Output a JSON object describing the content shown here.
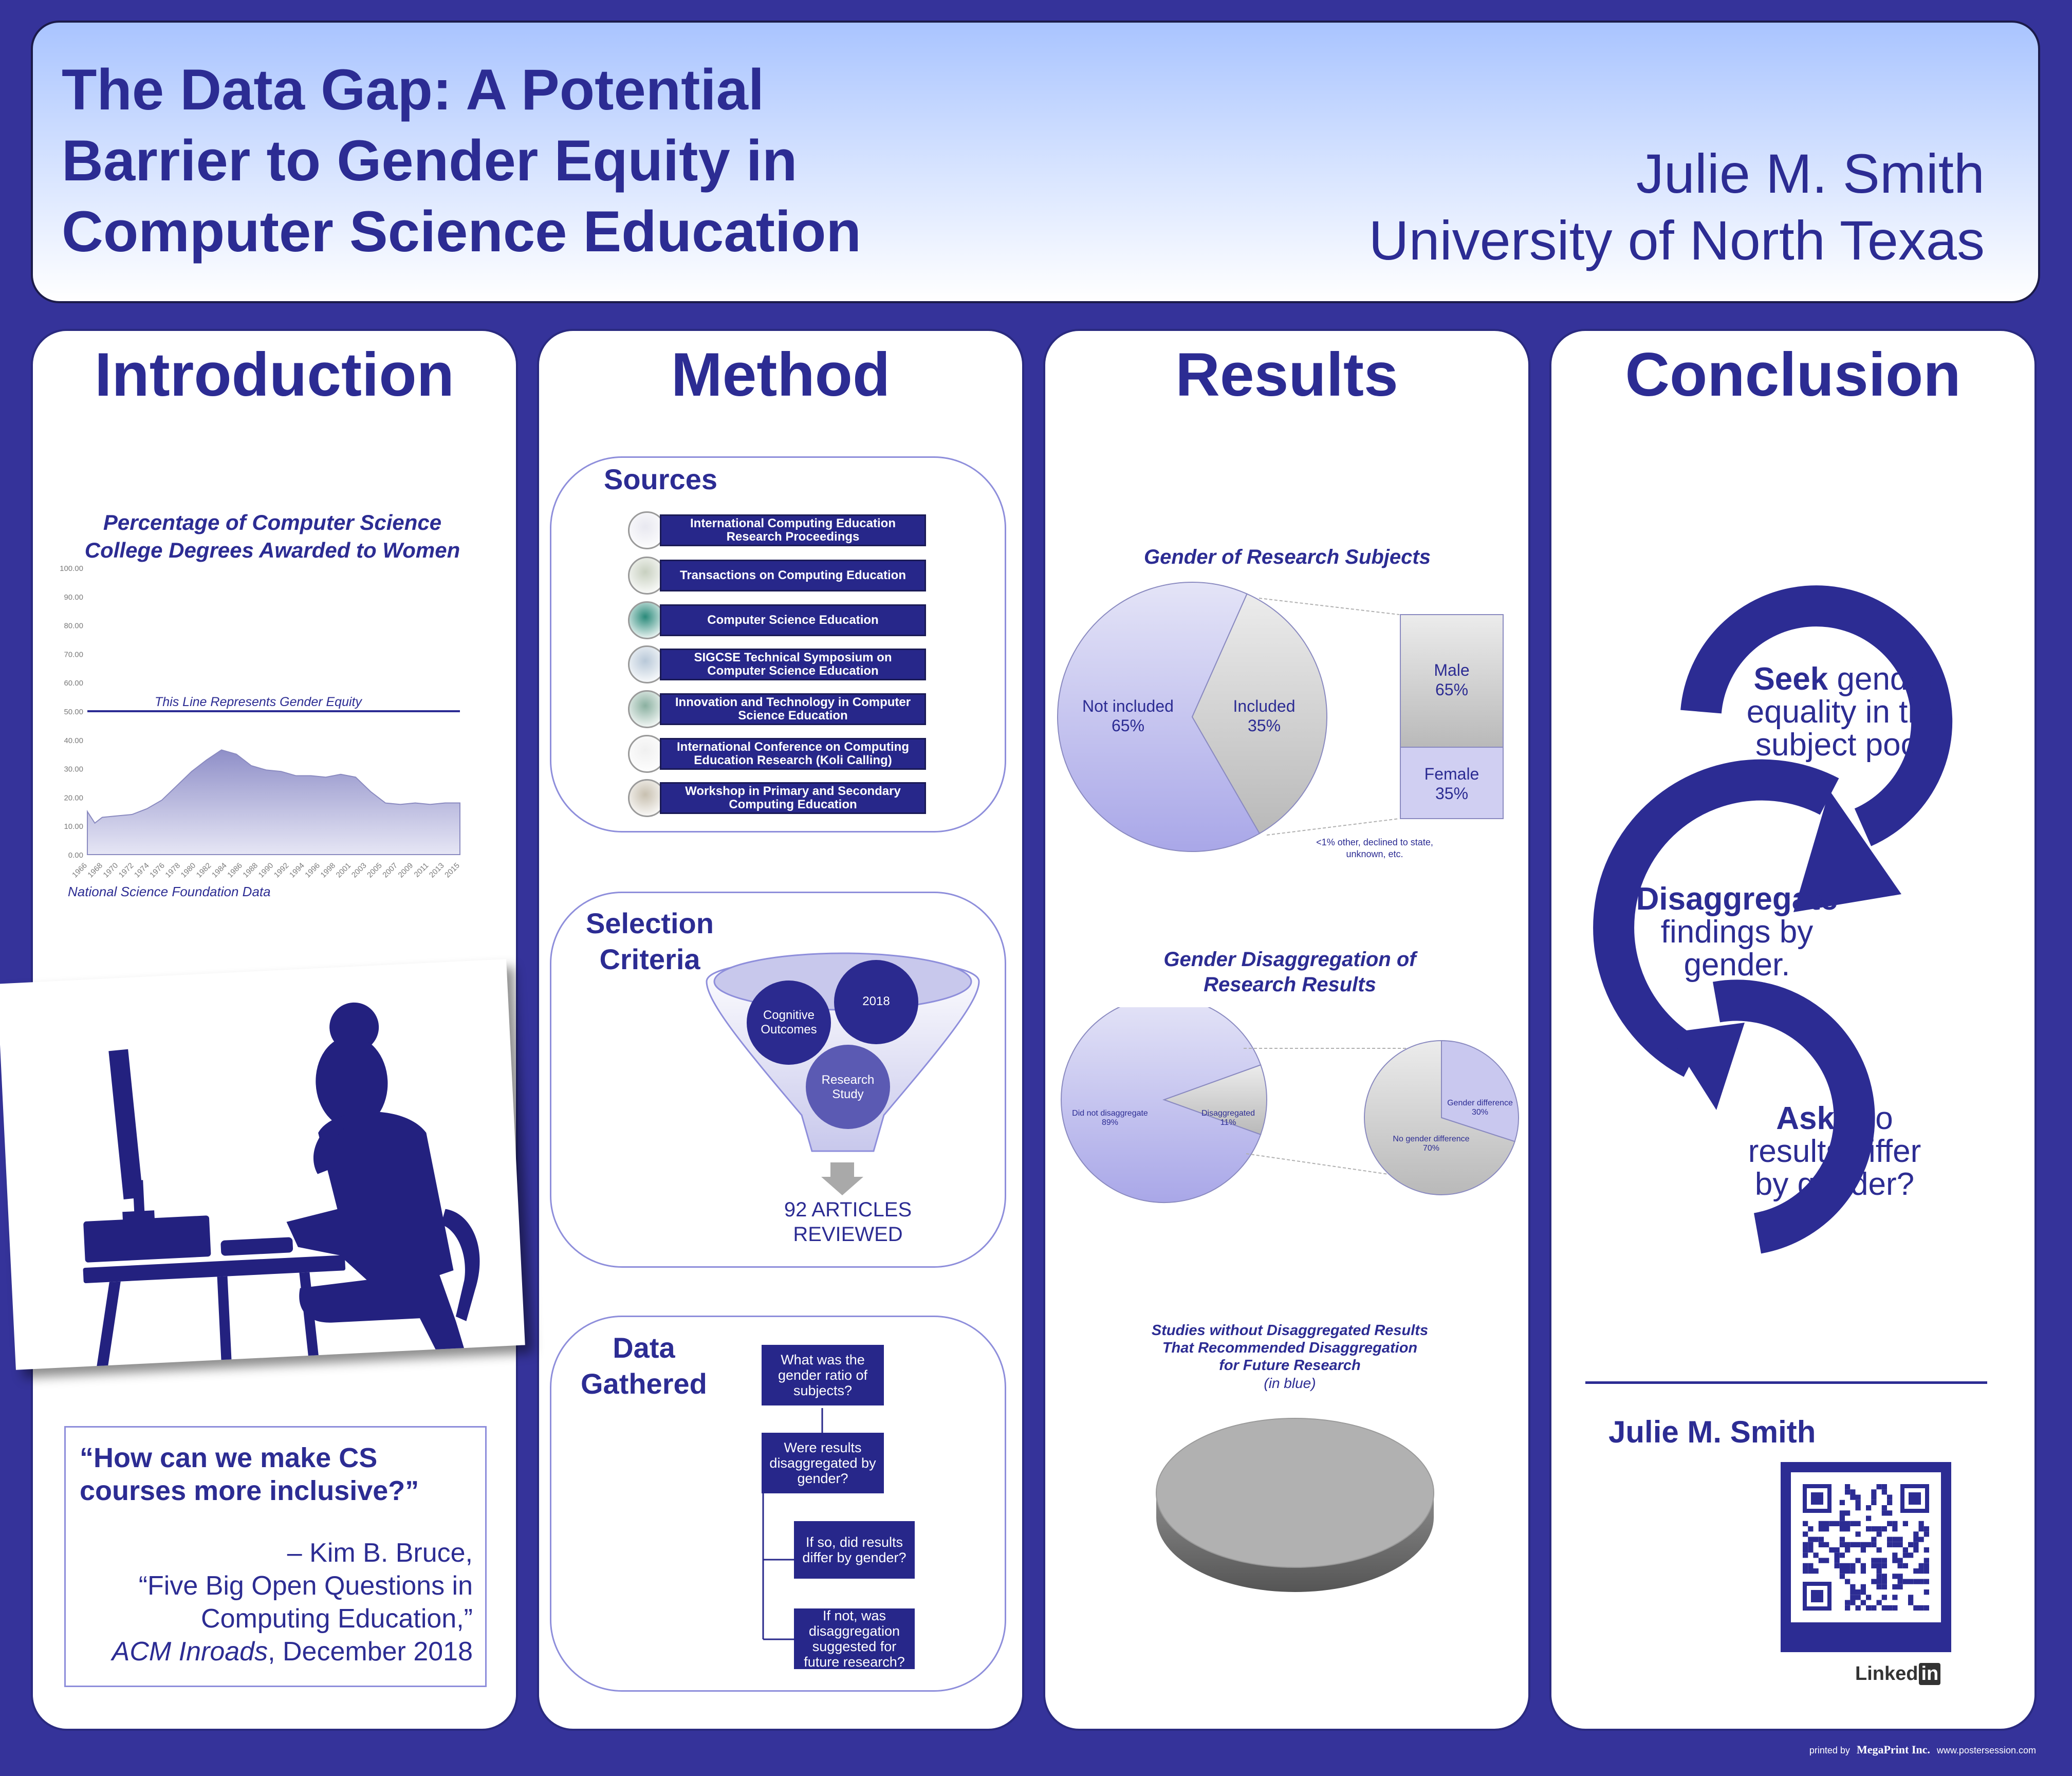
{
  "header": {
    "title_lines": [
      "The Data Gap: A Potential",
      "Barrier to Gender Equity in",
      "Computer Science Education"
    ],
    "author": "Julie M. Smith",
    "affiliation": "University of North Texas"
  },
  "introduction": {
    "heading": "Introduction",
    "chart_title_1": "Percentage of Computer Science",
    "chart_title_2": "College Degrees Awarded to Women",
    "equity_label": "This Line Represents Gender Equity",
    "source": "National Science Foundation Data",
    "quote_1": "“How can we make CS",
    "quote_2": "courses more inclusive?”",
    "attr_1": "– Kim B. Bruce,",
    "attr_2": "“Five Big Open Questions in",
    "attr_3": "Computing Education,”",
    "attr_4_italic": "ACM Inroads",
    "attr_4_rest": ", December 2018"
  },
  "method": {
    "heading": "Method",
    "sources_heading": "Sources",
    "sources": [
      "International Computing Education Research Proceedings",
      "Transactions on Computing Education",
      "Computer Science Education",
      "SIGCSE Technical Symposium on Computer Science Education",
      "Innovation and Technology in Computer Science Education",
      "International Conference on Computing Education Research (Koli Calling)",
      "Workshop in Primary and Secondary Computing Education"
    ],
    "selection_heading_1": "Selection",
    "selection_heading_2": "Criteria",
    "criteria": [
      "Cognitive Outcomes",
      "2018",
      "Research Study"
    ],
    "articles_1": "92 ARTICLES",
    "articles_2": "REVIEWED",
    "data_heading_1": "Data",
    "data_heading_2": "Gathered",
    "questions": [
      "What was the gender ratio of subjects?",
      "Were results disaggregated by gender?",
      "If so, did results differ by gender?",
      "If not, was disaggregation suggested for future research?"
    ]
  },
  "results": {
    "heading": "Results",
    "chart1_title": "Gender of Research Subjects",
    "chart1_pie": [
      {
        "label": "Not included",
        "value": "65%"
      },
      {
        "label": "Included",
        "value": "35%"
      }
    ],
    "chart1_bar": [
      {
        "label": "Male",
        "value": "65%"
      },
      {
        "label": "Female",
        "value": "35%"
      }
    ],
    "chart1_note_1": "<1% other, declined to state,",
    "chart1_note_2": "unknown, etc.",
    "chart2_title_1": "Gender Disaggregation of",
    "chart2_title_2": "Research Results",
    "chart2_main": [
      {
        "label": "Did not disaggregate",
        "value": "89%"
      },
      {
        "label": "Disaggregated",
        "value": "11%"
      }
    ],
    "chart2_sub": [
      {
        "label": "Gender difference",
        "value": "30%"
      },
      {
        "label": "No gender difference",
        "value": "70%"
      }
    ],
    "chart3_title_1": "Studies without Disaggregated Results",
    "chart3_title_2": "That Recommended Disaggregation",
    "chart3_title_3": "for Future Research",
    "chart3_sub": "(in blue)"
  },
  "chart_data": [
    {
      "type": "area",
      "title": "Percentage of Computer Science College Degrees Awarded to Women",
      "ylim": [
        0,
        100
      ],
      "yticks": [
        "100.00",
        "90.00",
        "80.00",
        "70.00",
        "60.00",
        "50.00",
        "40.00",
        "30.00",
        "20.00",
        "10.00",
        "0.00"
      ],
      "xticks": [
        "1966",
        "1968",
        "1970",
        "1972",
        "1974",
        "1976",
        "1978",
        "1980",
        "1982",
        "1984",
        "1986",
        "1988",
        "1990",
        "1992",
        "1994",
        "1996",
        "1998",
        "2001",
        "2003",
        "2005",
        "2007",
        "2009",
        "2011",
        "2013",
        "2015"
      ],
      "x": [
        1966,
        1967,
        1968,
        1970,
        1972,
        1974,
        1976,
        1978,
        1980,
        1982,
        1984,
        1986,
        1988,
        1990,
        1992,
        1994,
        1996,
        1998,
        2000,
        2002,
        2004,
        2006,
        2008,
        2010,
        2012,
        2014,
        2016
      ],
      "y": [
        15,
        11,
        13,
        13.5,
        14,
        16,
        19,
        24,
        29,
        33,
        36.5,
        35,
        31,
        29.5,
        29,
        27.5,
        27.5,
        27,
        28,
        27,
        22,
        18,
        17.5,
        18,
        17.5,
        18,
        18
      ],
      "reference_line": 50
    },
    {
      "type": "pie",
      "title": "Gender of Research Subjects",
      "labels": [
        "Not included",
        "Included"
      ],
      "values": [
        65,
        35
      ]
    },
    {
      "type": "bar",
      "labels": [
        "Male",
        "Female"
      ],
      "values": [
        65,
        35
      ]
    },
    {
      "type": "pie",
      "title": "Gender Disaggregation of Research Results",
      "labels": [
        "Did not disaggregate",
        "Disaggregated"
      ],
      "values": [
        89,
        11
      ]
    },
    {
      "type": "pie",
      "labels": [
        "Gender difference",
        "No gender difference"
      ],
      "values": [
        30,
        70
      ]
    },
    {
      "type": "pie",
      "title": "Studies without Disaggregated Results That Recommended Disaggregation for Future Research",
      "values": [
        100
      ]
    }
  ],
  "conclusion": {
    "heading": "Conclusion",
    "step1_bold": "Seek",
    "step1_rest": " gender",
    "step1_l2": "equality in the",
    "step1_l3": "subject pool.",
    "step2_bold": "Disaggregate",
    "step2_l2": "findings by",
    "step2_l3": "gender.",
    "step3_bold": "Ask",
    "step3_rest": ": Do",
    "step3_l2": "results differ",
    "step3_l3": "by gender?",
    "name": "Julie M. Smith",
    "linkedin_text": "Linked",
    "linkedin_in": "in"
  },
  "footer": {
    "printed_by": "printed by",
    "company": "MegaPrint Inc.",
    "url": "www.postersession.com"
  },
  "colors": {
    "background": "#35339a",
    "primary": "#2c2c93",
    "lavender": "#b9b7ee"
  }
}
